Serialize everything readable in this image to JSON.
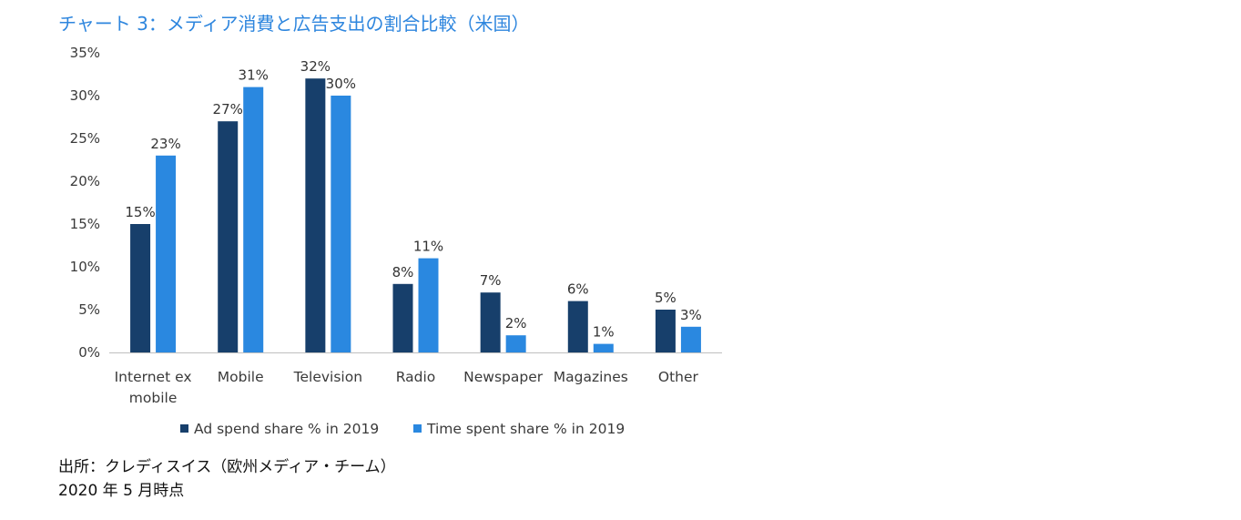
{
  "title": "チャート 3：メディア消費と広告支出の割合比較（米国）",
  "source_line1": "出所：クレディスイス（欧州メディア・チーム）",
  "source_line2": "2020 年 5 月時点",
  "chart_data": {
    "type": "bar",
    "categories": [
      [
        "Internet ex",
        "mobile"
      ],
      [
        "Mobile"
      ],
      [
        "Television"
      ],
      [
        "Radio"
      ],
      [
        "Newspaper"
      ],
      [
        "Magazines"
      ],
      [
        "Other"
      ]
    ],
    "series": [
      {
        "name": "Ad spend share % in 2019",
        "color": "#173f6b",
        "values": [
          15,
          27,
          32,
          8,
          7,
          6,
          5
        ]
      },
      {
        "name": "Time spent share % in 2019",
        "color": "#2a88e0",
        "values": [
          23,
          31,
          30,
          11,
          2,
          1,
          3
        ]
      }
    ],
    "ylim": [
      0,
      35
    ],
    "yticks": [
      0,
      5,
      10,
      15,
      20,
      25,
      30,
      35
    ],
    "tick_suffix": "%",
    "legend_position": "bottom",
    "grid": false
  }
}
